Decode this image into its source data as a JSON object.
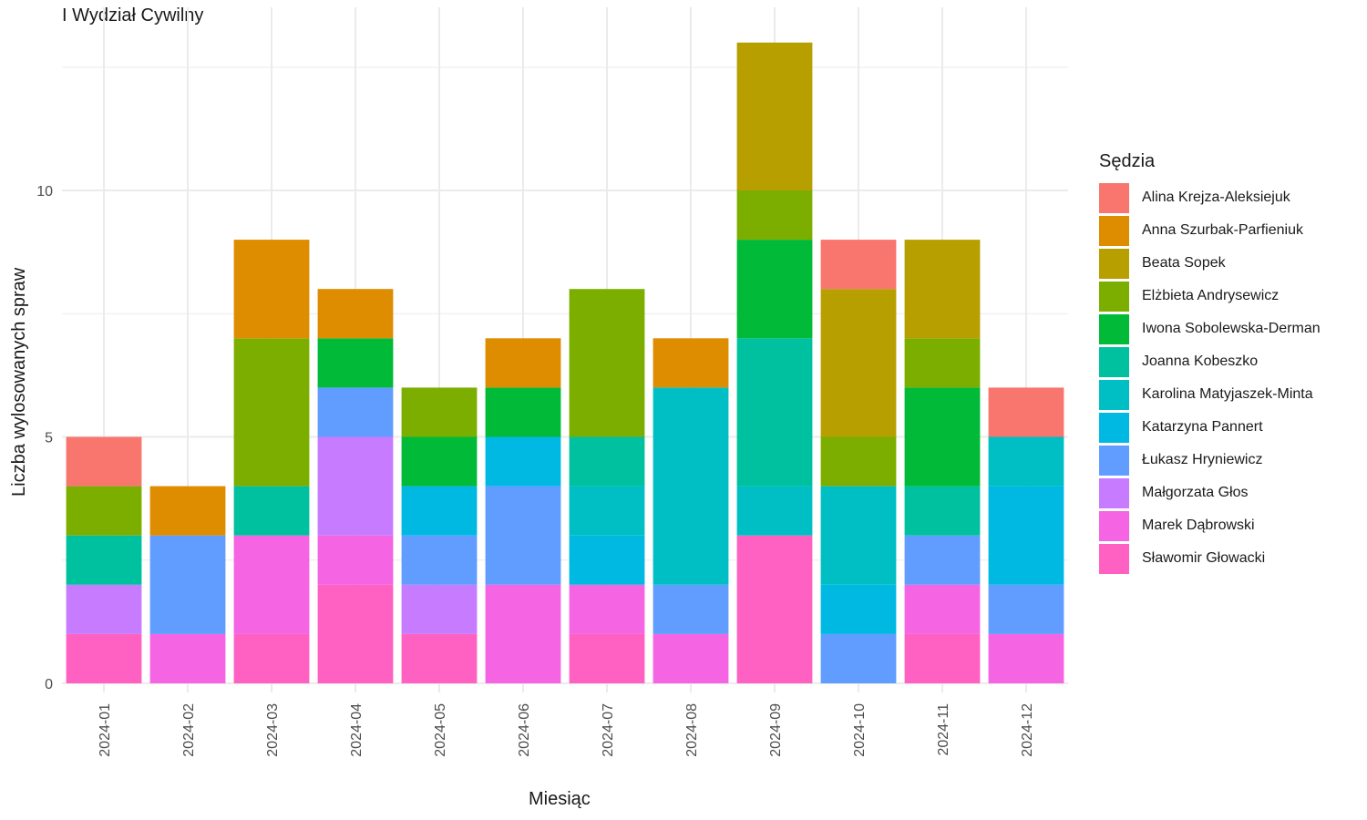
{
  "chart_data": {
    "type": "bar",
    "stacked": true,
    "title": "I Wydział Cywilny",
    "xlabel": "Miesiąc",
    "ylabel": "Liczba wylosowanych spraw",
    "ylim": [
      0,
      13.5
    ],
    "yticks": [
      0,
      5,
      10
    ],
    "grid": true,
    "legend_title": "Sędzia",
    "legend_position": "right",
    "categories": [
      "2024-01",
      "2024-02",
      "2024-03",
      "2024-04",
      "2024-05",
      "2024-06",
      "2024-07",
      "2024-08",
      "2024-09",
      "2024-10",
      "2024-11",
      "2024-12"
    ],
    "series": [
      {
        "name": "Sławomir Głowacki",
        "color": "#FF61C3",
        "values": [
          1,
          0,
          1,
          2,
          1,
          0,
          1,
          0,
          3,
          0,
          1,
          0
        ]
      },
      {
        "name": "Marek Dąbrowski",
        "color": "#F564E3",
        "values": [
          0,
          1,
          2,
          1,
          0,
          2,
          1,
          1,
          0,
          0,
          1,
          1
        ]
      },
      {
        "name": "Małgorzata Głos",
        "color": "#C77CFF",
        "values": [
          1,
          0,
          0,
          2,
          1,
          0,
          0,
          0,
          0,
          0,
          0,
          0
        ]
      },
      {
        "name": "Łukasz Hryniewicz",
        "color": "#619CFF",
        "values": [
          0,
          2,
          0,
          1,
          1,
          2,
          0,
          1,
          0,
          1,
          1,
          1
        ]
      },
      {
        "name": "Katarzyna Pannert",
        "color": "#00B9E3",
        "values": [
          0,
          0,
          0,
          0,
          1,
          1,
          1,
          0,
          0,
          1,
          0,
          2
        ]
      },
      {
        "name": "Karolina Matyjaszek-Minta",
        "color": "#00BFC4",
        "values": [
          0,
          0,
          0,
          0,
          0,
          0,
          1,
          4,
          1,
          2,
          0,
          1
        ]
      },
      {
        "name": "Joanna Kobeszko",
        "color": "#00C19F",
        "values": [
          1,
          0,
          1,
          0,
          0,
          0,
          1,
          0,
          3,
          0,
          1,
          0
        ]
      },
      {
        "name": "Iwona Sobolewska-Derman",
        "color": "#00BA38",
        "values": [
          0,
          0,
          0,
          1,
          1,
          1,
          0,
          0,
          2,
          0,
          2,
          0
        ]
      },
      {
        "name": "Elżbieta Andrysewicz",
        "color": "#7CAE00",
        "values": [
          1,
          0,
          3,
          0,
          1,
          0,
          3,
          0,
          1,
          1,
          1,
          0
        ]
      },
      {
        "name": "Beata Sopek",
        "color": "#B79F00",
        "values": [
          0,
          0,
          0,
          0,
          0,
          0,
          0,
          0,
          3,
          3,
          2,
          0
        ]
      },
      {
        "name": "Anna Szurbak-Parfieniuk",
        "color": "#DE8C00",
        "values": [
          0,
          1,
          2,
          1,
          0,
          1,
          0,
          1,
          0,
          0,
          0,
          0
        ]
      },
      {
        "name": "Alina Krejza-Aleksiejuk",
        "color": "#F8766D",
        "values": [
          1,
          0,
          0,
          0,
          0,
          0,
          0,
          0,
          0,
          1,
          0,
          1
        ]
      }
    ]
  },
  "legend_order": [
    "Alina Krejza-Aleksiejuk",
    "Anna Szurbak-Parfieniuk",
    "Beata Sopek",
    "Elżbieta Andrysewicz",
    "Iwona Sobolewska-Derman",
    "Joanna Kobeszko",
    "Karolina Matyjaszek-Minta",
    "Katarzyna Pannert",
    "Łukasz Hryniewicz",
    "Małgorzata Głos",
    "Marek Dąbrowski",
    "Sławomir Głowacki"
  ]
}
